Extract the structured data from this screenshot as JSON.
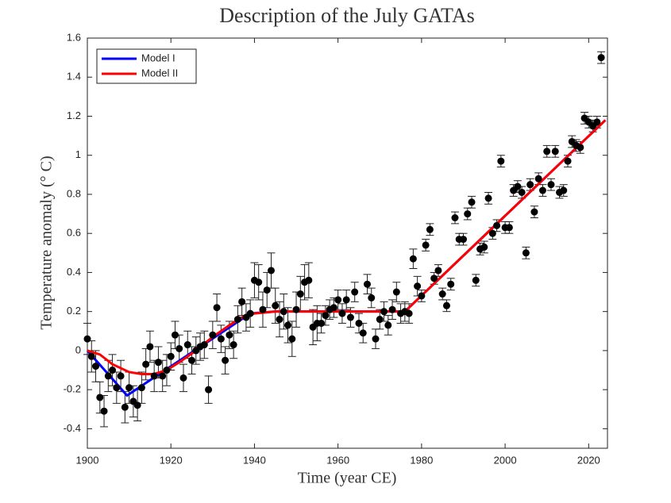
{
  "chart_data": {
    "type": "scatter",
    "title": "Description of the July GATAs",
    "xlabel": "Time (year CE)",
    "ylabel": "Temperature anomaly (° C)",
    "x": [
      1900,
      1901,
      1902,
      1903,
      1904,
      1905,
      1906,
      1907,
      1908,
      1909,
      1910,
      1911,
      1912,
      1913,
      1914,
      1915,
      1916,
      1917,
      1918,
      1919,
      1920,
      1921,
      1922,
      1923,
      1924,
      1925,
      1926,
      1927,
      1928,
      1929,
      1930,
      1931,
      1932,
      1933,
      1934,
      1935,
      1936,
      1937,
      1938,
      1939,
      1940,
      1941,
      1942,
      1943,
      1944,
      1945,
      1946,
      1947,
      1948,
      1949,
      1950,
      1951,
      1952,
      1953,
      1954,
      1955,
      1956,
      1957,
      1958,
      1959,
      1960,
      1961,
      1962,
      1963,
      1964,
      1965,
      1966,
      1967,
      1968,
      1969,
      1970,
      1971,
      1972,
      1973,
      1974,
      1975,
      1976,
      1977,
      1978,
      1979,
      1980,
      1981,
      1982,
      1983,
      1984,
      1985,
      1986,
      1987,
      1988,
      1989,
      1990,
      1991,
      1992,
      1993,
      1994,
      1995,
      1996,
      1997,
      1998,
      1999,
      2000,
      2001,
      2002,
      2003,
      2004,
      2005,
      2006,
      2007,
      2008,
      2009,
      2010,
      2011,
      2012,
      2013,
      2014,
      2015,
      2016,
      2017,
      2018,
      2019,
      2020,
      2021,
      2022,
      2023
    ],
    "values": [
      0.06,
      -0.03,
      -0.08,
      -0.24,
      -0.31,
      -0.13,
      -0.1,
      -0.19,
      -0.13,
      -0.29,
      -0.19,
      -0.26,
      -0.28,
      -0.19,
      -0.07,
      0.02,
      -0.13,
      -0.06,
      -0.13,
      -0.1,
      -0.03,
      0.08,
      0.01,
      -0.14,
      0.03,
      -0.05,
      0.0,
      0.02,
      0.03,
      -0.2,
      0.08,
      0.22,
      0.06,
      -0.05,
      0.08,
      0.03,
      0.16,
      0.25,
      0.17,
      0.19,
      0.36,
      0.35,
      0.21,
      0.31,
      0.41,
      0.23,
      0.16,
      0.2,
      0.13,
      0.06,
      0.21,
      0.29,
      0.35,
      0.36,
      0.12,
      0.14,
      0.14,
      0.18,
      0.21,
      0.22,
      0.26,
      0.19,
      0.26,
      0.17,
      0.3,
      0.14,
      0.09,
      0.34,
      0.27,
      0.06,
      0.16,
      0.2,
      0.13,
      0.21,
      0.3,
      0.19,
      0.2,
      0.19,
      0.47,
      0.33,
      0.28,
      0.54,
      0.62,
      0.37,
      0.41,
      0.29,
      0.23,
      0.34,
      0.68,
      0.57,
      0.57,
      0.7,
      0.76,
      0.36,
      0.52,
      0.53,
      0.78,
      0.6,
      0.64,
      0.97,
      0.63,
      0.63,
      0.82,
      0.84,
      0.81,
      0.5,
      0.85,
      0.71,
      0.88,
      0.82,
      1.02,
      0.85,
      1.02,
      0.81,
      0.82,
      0.97,
      1.07,
      1.05,
      1.04,
      1.19,
      1.17,
      1.15,
      1.17,
      1.5
    ],
    "errors": [
      0.08,
      0.08,
      0.08,
      0.08,
      0.08,
      0.08,
      0.08,
      0.08,
      0.08,
      0.08,
      0.08,
      0.08,
      0.08,
      0.08,
      0.08,
      0.08,
      0.08,
      0.08,
      0.08,
      0.08,
      0.07,
      0.07,
      0.07,
      0.07,
      0.07,
      0.07,
      0.07,
      0.07,
      0.07,
      0.07,
      0.07,
      0.07,
      0.07,
      0.07,
      0.07,
      0.07,
      0.07,
      0.07,
      0.07,
      0.07,
      0.09,
      0.09,
      0.09,
      0.09,
      0.09,
      0.09,
      0.09,
      0.09,
      0.09,
      0.09,
      0.09,
      0.09,
      0.09,
      0.09,
      0.09,
      0.09,
      0.05,
      0.05,
      0.05,
      0.05,
      0.05,
      0.05,
      0.05,
      0.05,
      0.05,
      0.05,
      0.05,
      0.05,
      0.05,
      0.05,
      0.05,
      0.05,
      0.05,
      0.05,
      0.05,
      0.05,
      0.05,
      0.05,
      0.05,
      0.05,
      0.03,
      0.03,
      0.03,
      0.03,
      0.03,
      0.03,
      0.03,
      0.03,
      0.03,
      0.03,
      0.03,
      0.03,
      0.03,
      0.03,
      0.03,
      0.03,
      0.03,
      0.03,
      0.03,
      0.03,
      0.03,
      0.03,
      0.03,
      0.03,
      0.03,
      0.03,
      0.03,
      0.03,
      0.03,
      0.03,
      0.03,
      0.03,
      0.03,
      0.03,
      0.03,
      0.03,
      0.03,
      0.03,
      0.03,
      0.03,
      0.03,
      0.03,
      0.03,
      0.03
    ],
    "color": "#000000",
    "series": [
      {
        "name": "Model I",
        "color": "#0000ff",
        "x": [
          1900,
          1909.5,
          1939,
          1945,
          1976,
          2024
        ],
        "values": [
          0,
          -0.23,
          0.19,
          0.2,
          0.2,
          1.18
        ]
      },
      {
        "name": "Model II",
        "color": "#ff0000",
        "x": [
          1900,
          1903,
          1906,
          1910,
          1913,
          1916,
          1919,
          1922,
          1926,
          1930,
          1934,
          1937,
          1940,
          1945,
          1976,
          2024
        ],
        "values": [
          0,
          -0.02,
          -0.07,
          -0.11,
          -0.12,
          -0.12,
          -0.1,
          -0.06,
          0,
          0.07,
          0.13,
          0.17,
          0.19,
          0.2,
          0.2,
          1.18
        ]
      }
    ],
    "xlim": [
      1900,
      2024.5
    ],
    "ylim": [
      -0.5,
      1.6
    ],
    "xticks": [
      1900,
      1920,
      1940,
      1960,
      1980,
      2000,
      2020
    ],
    "yticks": [
      -0.4,
      -0.2,
      0,
      0.2,
      0.4,
      0.6,
      0.8,
      1,
      1.2,
      1.4,
      1.6
    ],
    "legend": "northwest"
  }
}
